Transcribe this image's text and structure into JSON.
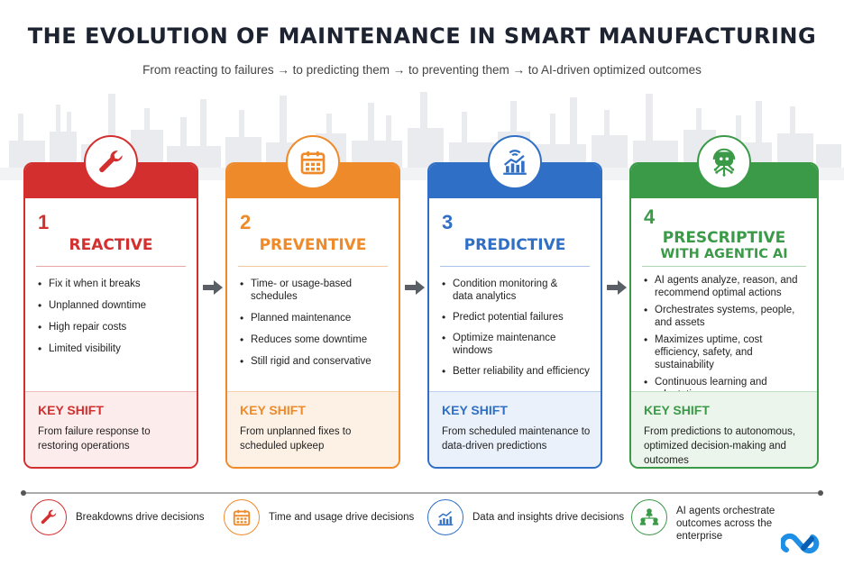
{
  "title": "THE EVOLUTION OF MAINTENANCE IN SMART MANUFACTURING",
  "subtitle": "From reacting to failures → to predicting them → to preventing them → to AI-driven optimized outcomes",
  "colors": {
    "reactive": "#d32f2f",
    "preventive": "#ef8a2a",
    "predictive": "#2f6fc6",
    "prescriptive": "#3a9a48"
  },
  "stages": [
    {
      "number": "1",
      "name": "REACTIVE",
      "icon": "wrench-icon",
      "bullets": [
        "Fix it when it breaks",
        "Unplanned downtime",
        "High repair costs",
        "Limited visibility"
      ],
      "shift_title": "KEY SHIFT",
      "shift_text": "From failure response to restoring operations"
    },
    {
      "number": "2",
      "name": "PREVENTIVE",
      "icon": "calendar-icon",
      "bullets": [
        "Time- or usage-based schedules",
        "Planned maintenance",
        "Reduces some downtime",
        "Still rigid and conservative"
      ],
      "shift_title": "KEY SHIFT",
      "shift_text": "From unplanned fixes to scheduled upkeep"
    },
    {
      "number": "3",
      "name": "PREDICTIVE",
      "icon": "analytics-chart-icon",
      "bullets": [
        "Condition monitoring & data analytics",
        "Predict potential failures",
        "Optimize maintenance windows",
        "Better reliability and efficiency"
      ],
      "shift_title": "KEY SHIFT",
      "shift_text": "From scheduled maintenance to data-driven predictions"
    },
    {
      "number": "4",
      "name_line1": "PRESCRIPTIVE",
      "name_line2": "WITH AGENTIC AI",
      "icon": "ai-robot-icon",
      "bullets": [
        "AI agents analyze, reason, and recommend optimal actions",
        "Orchestrates systems, people, and assets",
        "Maximizes uptime, cost efficiency, safety, and sustainability",
        "Continuous learning and adaptation"
      ],
      "shift_title": "KEY SHIFT",
      "shift_text": "From predictions to autonomous, optimized decision-making and outcomes"
    }
  ],
  "footer": [
    {
      "icon": "wrench-icon",
      "text": "Breakdowns drive decisions"
    },
    {
      "icon": "calendar-icon",
      "text": "Time and usage drive decisions"
    },
    {
      "icon": "analytics-chart-icon",
      "text": "Data and insights drive decisions"
    },
    {
      "icon": "network-people-icon",
      "text": "AI agents orchestrate outcomes across the enterprise"
    }
  ],
  "logo_icon": "infinity-logo-icon"
}
